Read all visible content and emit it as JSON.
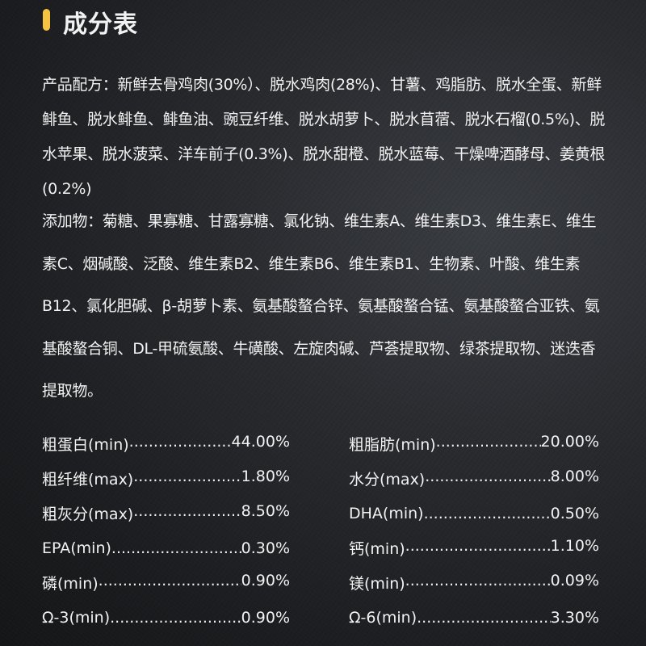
{
  "title": "成分表",
  "accent_color": "#f5c242",
  "ingredients": "产品配方：新鲜去骨鸡肉(30%）、脱水鸡肉(28%)、甘薯、鸡脂肪、脱水全蛋、新鲜鲱鱼、脱水鲱鱼、鲱鱼油、豌豆纤维、脱水胡萝卜、脱水苜蓿、脱水石榴(0.5%)、脱水苹果、脱水菠菜、洋车前子(0.3%)、脱水甜橙、脱水蓝莓、干燥啤酒酵母、姜黄根(0.2%)",
  "additives": "添加物：菊糖、果寡糖、甘露寡糖、氯化钠、维生素A、维生素D3、维生素E、维生素C、烟碱酸、泛酸、维生素B2、维生素B6、维生素B1、生物素、叶酸、维生素B12、氯化胆碱、β-胡萝卜素、氨基酸螯合锌、氨基酸螯合锰、氨基酸螯合亚铁、氨基酸螯合铜、DL-甲硫氨酸、牛磺酸、左旋肉碱、芦荟提取物、绿茶提取物、迷迭香提取物。",
  "nutrition": [
    {
      "left": {
        "label": "粗蛋白(min)",
        "value": "44.00%"
      },
      "right": {
        "label": "粗脂肪(min)",
        "value": "20.00%"
      }
    },
    {
      "left": {
        "label": "粗纤维(max)",
        "value": "1.80%"
      },
      "right": {
        "label": "水分(max)",
        "value": "8.00%"
      }
    },
    {
      "left": {
        "label": "粗灰分(max)",
        "value": "8.50%"
      },
      "right": {
        "label": "DHA(min)",
        "value": "0.50%"
      }
    },
    {
      "left": {
        "label": "EPA(min)",
        "value": "0.30%"
      },
      "right": {
        "label": "钙(min)",
        "value": "1.10%"
      }
    },
    {
      "left": {
        "label": "磷(min)",
        "value": "0.90%"
      },
      "right": {
        "label": "镁(min)",
        "value": "0.09%"
      }
    },
    {
      "left": {
        "label": "Ω-3(min)",
        "value": "0.90%"
      },
      "right": {
        "label": "Ω-6(min)",
        "value": "3.30%"
      }
    }
  ]
}
